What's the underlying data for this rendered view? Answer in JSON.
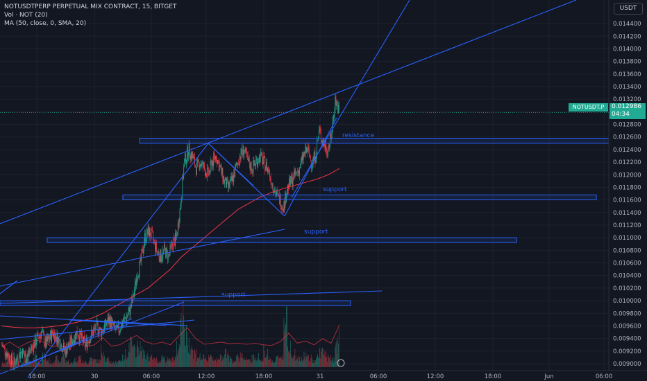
{
  "legend": {
    "symbol": "NOTUSDTPERP PERPETUAL MIX CONTRACT, 15, BITGET",
    "volume": "Vol · NOT (20)",
    "ma": "MA (50, close, 0, SMA, 20)"
  },
  "currency_label": "USDT",
  "last_price": {
    "symbol": "NOTUSDT.P",
    "value": "0.012986",
    "countdown": "04:34"
  },
  "colors": {
    "up": "#22ab94",
    "down": "#f23645",
    "drawing": "#2962ff",
    "ma": "#f23645",
    "background": "#131722"
  },
  "chart_data": {
    "type": "candlestick",
    "y_axis": {
      "ylim": [
        0.009,
        0.0145
      ],
      "step": 0.0002
    },
    "x_axis": {
      "ticks": [
        "18:00",
        "30",
        "06:00",
        "12:00",
        "18:00",
        "31",
        "06:00",
        "12:00",
        "18:00",
        "Jun",
        "06:00"
      ]
    },
    "price_path": [
      0.0093,
      0.0092,
      0.0091,
      0.009,
      0.0091,
      0.0092,
      0.0091,
      0.0092,
      0.0093,
      0.0094,
      0.0095,
      0.0093,
      0.0094,
      0.0095,
      0.0094,
      0.0093,
      0.0092,
      0.0093,
      0.0094,
      0.0095,
      0.0094,
      0.0093,
      0.0094,
      0.0095,
      0.0096,
      0.0095,
      0.0096,
      0.0097,
      0.0096,
      0.0095,
      0.0096,
      0.0097,
      0.0098,
      0.01,
      0.0104,
      0.0106,
      0.011,
      0.0111,
      0.011,
      0.0108,
      0.0107,
      0.0108,
      0.0107,
      0.0109,
      0.011,
      0.0115,
      0.0122,
      0.0124,
      0.0123,
      0.0121,
      0.0122,
      0.0121,
      0.012,
      0.0122,
      0.0123,
      0.0121,
      0.0119,
      0.0118,
      0.0119,
      0.0121,
      0.0123,
      0.0124,
      0.0122,
      0.0121,
      0.0122,
      0.0123,
      0.0122,
      0.0121,
      0.0119,
      0.0117,
      0.0116,
      0.0115,
      0.0118,
      0.0119,
      0.012,
      0.0121,
      0.0123,
      0.0124,
      0.0122,
      0.0123,
      0.0127,
      0.0125,
      0.0124,
      0.0126,
      0.0132,
      0.013
    ],
    "ma_path": [
      0.0096,
      0.00958,
      0.00957,
      0.00957,
      0.00958,
      0.0096,
      0.00963,
      0.00967,
      0.00972,
      0.0098,
      0.0099,
      0.01,
      0.0101,
      0.0102,
      0.01035,
      0.0105,
      0.0107,
      0.01085,
      0.011,
      0.01115,
      0.0113,
      0.01145,
      0.01155,
      0.01165,
      0.01172,
      0.01178,
      0.01183,
      0.01188,
      0.01193,
      0.012,
      0.0121
    ],
    "volume_path": [
      5,
      9,
      14,
      7,
      4,
      10,
      12,
      6,
      18,
      8,
      14,
      9,
      6,
      11,
      7,
      15,
      8,
      5,
      10,
      13,
      7,
      6,
      12,
      9,
      8,
      22,
      10,
      7,
      6,
      9,
      12,
      18,
      30,
      22,
      26,
      20,
      15,
      12,
      10,
      8,
      14,
      10,
      9,
      12,
      25,
      80,
      40,
      30,
      20,
      14,
      12,
      10,
      16,
      12,
      9,
      14,
      20,
      11,
      9,
      12,
      18,
      10,
      8,
      12,
      14,
      9,
      22,
      10,
      8,
      12,
      15,
      60,
      30,
      18,
      12,
      10,
      16,
      12,
      9,
      14,
      20,
      18,
      12,
      10,
      30,
      45
    ],
    "annotations": [
      {
        "type": "zone",
        "label": "resistance",
        "y_low": 0.0125,
        "y_high": 0.01258
      },
      {
        "type": "zone",
        "label": "support",
        "y_low": 0.01161,
        "y_high": 0.01168
      },
      {
        "type": "zone",
        "label": "support",
        "y_low": 0.01093,
        "y_high": 0.011
      },
      {
        "type": "zone",
        "label": "support",
        "y_low": 0.00993,
        "y_high": 0.01
      }
    ]
  }
}
